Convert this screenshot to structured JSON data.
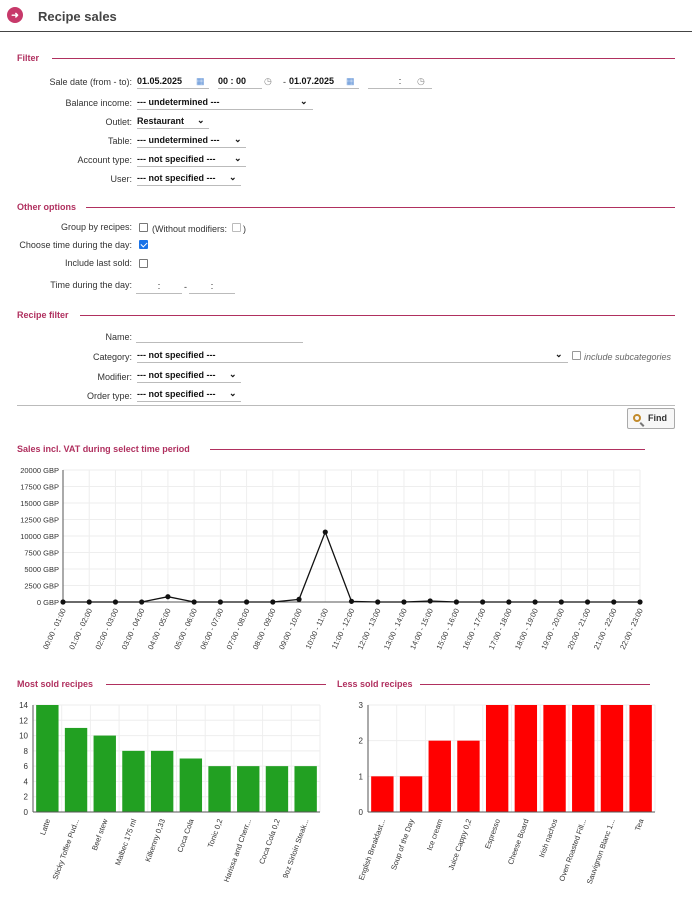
{
  "header": {
    "title": "Recipe sales",
    "icon": "arrow-right-icon"
  },
  "filter": {
    "section": "Filter",
    "sale_date_label": "Sale date (from - to):",
    "date_from": "01.05.2025",
    "time_from_h": "00",
    "time_from_m": "00",
    "dash": "-",
    "date_to": "01.07.2025",
    "time_to": ":",
    "balance_income_label": "Balance income:",
    "balance_income_value": "--- undetermined ---",
    "outlet_label": "Outlet:",
    "outlet_value": "Restaurant",
    "table_label": "Table:",
    "table_value": "--- undetermined ---",
    "account_type_label": "Account type:",
    "account_type_value": "--- not specified ---",
    "user_label": "User:",
    "user_value": "--- not specified ---"
  },
  "other": {
    "section": "Other options",
    "group_label": "Group by recipes:",
    "without_modifiers": "(Without modifiers:",
    "close_paren": ")",
    "choose_time_label": "Choose time during the day:",
    "include_last_label": "Include last sold:",
    "time_day_label": "Time during the day:",
    "time_colon": ":",
    "dash": "-"
  },
  "recipe_filter": {
    "section": "Recipe filter",
    "name_label": "Name:",
    "category_label": "Category:",
    "category_value": "--- not specified ---",
    "include_sub": "include subcategories",
    "modifier_label": "Modifier:",
    "modifier_value": "--- not specified ---",
    "order_type_label": "Order type:",
    "order_type_value": "--- not specified ---"
  },
  "find_button": "Find",
  "colors": {
    "accent": "#b0305f",
    "green": "#22a022",
    "red": "#ff0000"
  },
  "chart_data": [
    {
      "type": "line",
      "title": "Sales incl. VAT during select time period",
      "yticks": [
        "20000 GBP",
        "17500 GBP",
        "15000 GBP",
        "12500 GBP",
        "10000 GBP",
        "7500 GBP",
        "5000 GBP",
        "2500 GBP",
        "0 GBP"
      ],
      "ylim": [
        0,
        20000
      ],
      "categories": [
        "00:00 - 01:00",
        "01:00 - 02:00",
        "02:00 - 03:00",
        "03:00 - 04:00",
        "04:00 - 05:00",
        "05:00 - 06:00",
        "06:00 - 07:00",
        "07:00 - 08:00",
        "08:00 - 09:00",
        "09:00 - 10:00",
        "10:00 - 11:00",
        "11:00 - 12:00",
        "12:00 - 13:00",
        "13:00 - 14:00",
        "14:00 - 15:00",
        "15:00 - 16:00",
        "16:00 - 17:00",
        "17:00 - 18:00",
        "18:00 - 19:00",
        "19:00 - 20:00",
        "20:00 - 21:00",
        "21:00 - 22:00",
        "22:00 - 23:00"
      ],
      "values": [
        0,
        0,
        0,
        0,
        800,
        0,
        0,
        0,
        0,
        400,
        10600,
        100,
        0,
        0,
        150,
        0,
        0,
        0,
        0,
        0,
        0,
        0,
        0
      ]
    },
    {
      "type": "bar",
      "title": "Most sold recipes",
      "categories": [
        "Latte",
        "Sticky Toffee Pud...",
        "Beef stew",
        "Malbec 175 ml",
        "Kilkenny 0,33",
        "Coca Cola",
        "Tonic 0,2",
        "Harissa and Cherr...",
        "Coca Cola 0,2",
        "9oz Sirloin Steak..."
      ],
      "values": [
        14,
        11,
        10,
        8,
        8,
        7,
        6,
        6,
        6,
        6
      ],
      "ylim": [
        0,
        14
      ],
      "yticks": [
        0,
        2,
        4,
        6,
        8,
        10,
        12,
        14
      ]
    },
    {
      "type": "bar",
      "title": "Less sold recipes",
      "categories": [
        "English Breakfast...",
        "Soup of the Day",
        "Ice cream",
        "Juice Cappy 0,2",
        "Espresso",
        "Cheese Board",
        "Irish nachos",
        "Oven Roasted Fill...",
        "Sauvignon Blanc 1...",
        "Tea"
      ],
      "values": [
        1,
        1,
        2,
        2,
        3,
        3,
        3,
        3,
        3,
        3
      ],
      "ylim": [
        0,
        3
      ],
      "yticks": [
        0,
        1,
        2,
        3
      ]
    }
  ]
}
